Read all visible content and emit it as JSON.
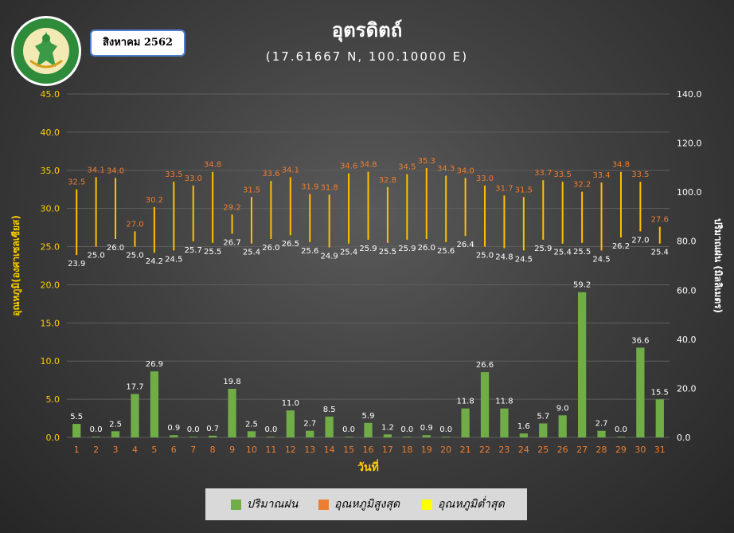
{
  "header": {
    "title": "อุตรดิตถ์",
    "coords": "(17.61667 N, 100.10000 E)",
    "month": "สิงหาคม 2562"
  },
  "colors": {
    "rain": "#70ad47",
    "tmax": "#ed7d31",
    "tmin": "#ffff00",
    "temp_axis": "#ffcc00",
    "label_max": "#ed7d31",
    "label_text": "#ffffff"
  },
  "chart_data": {
    "type": "bar",
    "title": "อุตรดิตถ์",
    "xlabel": "วันที่",
    "ylabel_left": "อุณหภูมิ(องศาเซลเซียส)",
    "ylabel_right": "ปริมาณฝน (มิลลิเมตร)",
    "ylim_left": [
      0,
      45
    ],
    "ylim_right": [
      0,
      140
    ],
    "yticks_left": [
      "0.0",
      "5.0",
      "10.0",
      "15.0",
      "20.0",
      "25.0",
      "30.0",
      "35.0",
      "40.0",
      "45.0"
    ],
    "yticks_right": [
      "0.0",
      "20.0",
      "40.0",
      "60.0",
      "80.0",
      "100.0",
      "120.0",
      "140.0"
    ],
    "legend_position": "bottom",
    "categories": [
      "1",
      "2",
      "3",
      "4",
      "5",
      "6",
      "7",
      "8",
      "9",
      "10",
      "11",
      "12",
      "13",
      "14",
      "15",
      "16",
      "17",
      "18",
      "19",
      "20",
      "21",
      "22",
      "23",
      "24",
      "25",
      "26",
      "27",
      "28",
      "29",
      "30",
      "31"
    ],
    "series": [
      {
        "name": "ปริมาณฝน",
        "axis": "right",
        "type": "bar",
        "values": [
          5.5,
          0.0,
          2.5,
          17.7,
          26.9,
          0.9,
          0.0,
          0.7,
          19.8,
          2.5,
          0.0,
          11.0,
          2.7,
          8.5,
          0.0,
          5.9,
          1.2,
          0.0,
          0.9,
          0.0,
          11.8,
          26.6,
          11.8,
          1.6,
          5.7,
          9.0,
          59.2,
          2.7,
          0.0,
          36.6,
          15.5
        ]
      },
      {
        "name": "อุณหภูมิสูงสุด",
        "axis": "left",
        "values": [
          32.5,
          34.1,
          34.0,
          27.0,
          30.2,
          33.5,
          33.0,
          34.8,
          29.2,
          31.5,
          33.6,
          34.1,
          31.9,
          31.8,
          34.6,
          34.8,
          32.8,
          34.5,
          35.3,
          34.3,
          34.0,
          33.0,
          31.7,
          31.5,
          33.7,
          33.5,
          32.2,
          33.4,
          34.8,
          33.5,
          27.6
        ]
      },
      {
        "name": "อุณหภูมิต่ำสุด",
        "axis": "left",
        "values": [
          23.9,
          25.0,
          26.0,
          25.0,
          24.2,
          24.5,
          25.7,
          25.5,
          26.7,
          25.4,
          26.0,
          26.5,
          25.6,
          24.9,
          25.4,
          25.9,
          25.5,
          25.9,
          26.0,
          25.6,
          26.4,
          25.0,
          24.8,
          24.5,
          25.9,
          25.4,
          25.5,
          24.5,
          26.2,
          27.0,
          25.4
        ]
      }
    ]
  },
  "legend": {
    "rain": "ปริมาณฝน",
    "tmax": "อุณหภูมิสูงสุด",
    "tmin": "อุณหภูมิต่ำสุด"
  }
}
